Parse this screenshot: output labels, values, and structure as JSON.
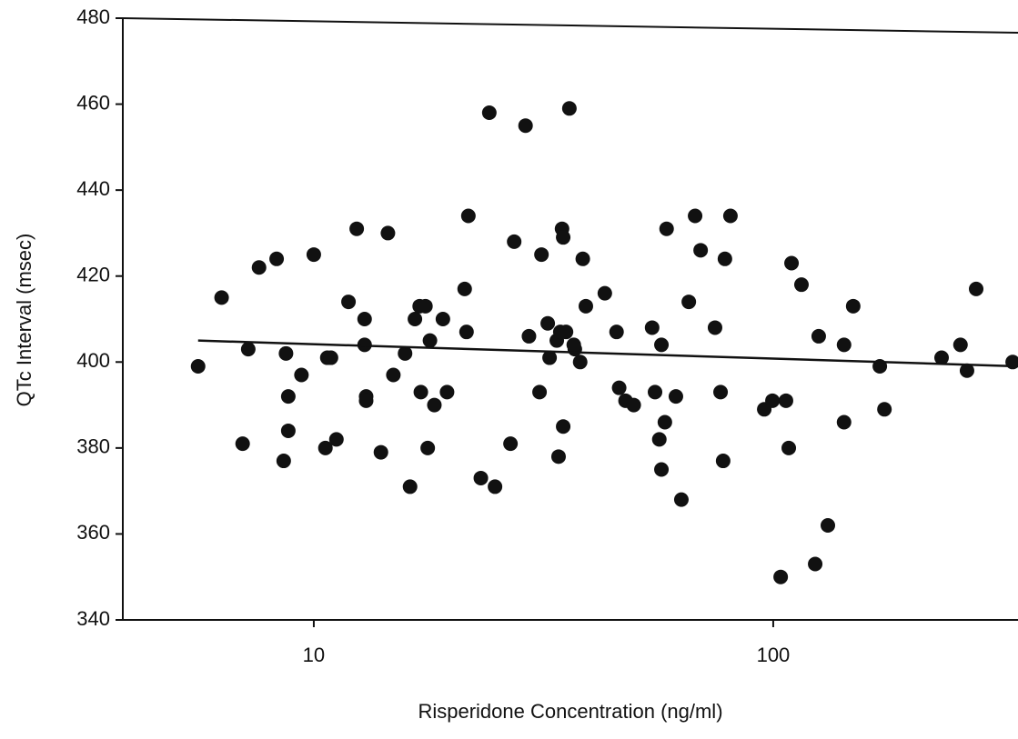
{
  "chart_data": {
    "type": "scatter",
    "x_label": "Risperidone Concentration (ng/ml)",
    "y_label": "QTc Interval (msec)",
    "xscale": "log",
    "xlim": [
      3.84,
      341
    ],
    "ylim": [
      340,
      480
    ],
    "xticks": [
      10,
      100
    ],
    "yticks": [
      340,
      360,
      380,
      400,
      420,
      440,
      460,
      480
    ],
    "color": "#111111",
    "x": [
      5.6,
      6.3,
      7.0,
      7.2,
      7.6,
      8.3,
      8.6,
      8.7,
      8.8,
      8.8,
      9.4,
      10,
      10.6,
      10.7,
      10.9,
      11.2,
      11.9,
      12.4,
      12.9,
      12.9,
      13.0,
      13.0,
      14.0,
      14.5,
      14.9,
      15.8,
      16.2,
      16.6,
      17.0,
      17.5,
      17.1,
      17.7,
      17.9,
      18.3,
      19.1,
      19.5,
      21.3,
      21.5,
      21.7,
      23.1,
      24.1,
      24.8,
      26.8,
      27.3,
      28.9,
      29.4,
      31.0,
      31.3,
      32.3,
      32.6,
      33.8,
      34.4,
      34.7,
      34.9,
      35.4,
      34.1,
      34.9,
      36.0,
      38.5,
      39.1,
      37.0,
      38.0,
      36.8,
      43.0,
      45.6,
      46.2,
      47.7,
      49.7,
      54.5,
      55.3,
      56.5,
      57.1,
      57.1,
      58.1,
      58.6,
      61.4,
      63.1,
      65.5,
      67.6,
      69.5,
      74.7,
      76.8,
      77.8,
      78.5,
      80.7,
      95.6,
      99.6,
      103.8,
      106.6,
      108.1,
      109.6,
      115.2,
      123.4,
      125.6,
      131.5,
      142.6,
      142.6,
      149.3,
      170.6,
      174.6,
      232.5,
      255.6,
      264.1,
      276.5,
      332
    ],
    "values": [
      399,
      415,
      381,
      403,
      422,
      424,
      377,
      402,
      384,
      392,
      397,
      425,
      380,
      401,
      401,
      382,
      414,
      431,
      410,
      404,
      392,
      391,
      379,
      430,
      397,
      402,
      371,
      410,
      413,
      413,
      393,
      380,
      405,
      390,
      410,
      393,
      417,
      407,
      434,
      373,
      458,
      371,
      381,
      428,
      455,
      406,
      393,
      425,
      409,
      401,
      405,
      407,
      431,
      429,
      407,
      378,
      385,
      459,
      424,
      413,
      403,
      400,
      404,
      416,
      407,
      394,
      391,
      390,
      408,
      393,
      382,
      404,
      375,
      386,
      431,
      392,
      368,
      414,
      434,
      426,
      408,
      393,
      377,
      424,
      434,
      389,
      391,
      350,
      391,
      380,
      423,
      418,
      353,
      406,
      362,
      404,
      386,
      413,
      399,
      389,
      401,
      404,
      398,
      417,
      400
    ],
    "trend_line": {
      "x": [
        5.6,
        341
      ],
      "values": [
        405,
        399
      ]
    }
  }
}
